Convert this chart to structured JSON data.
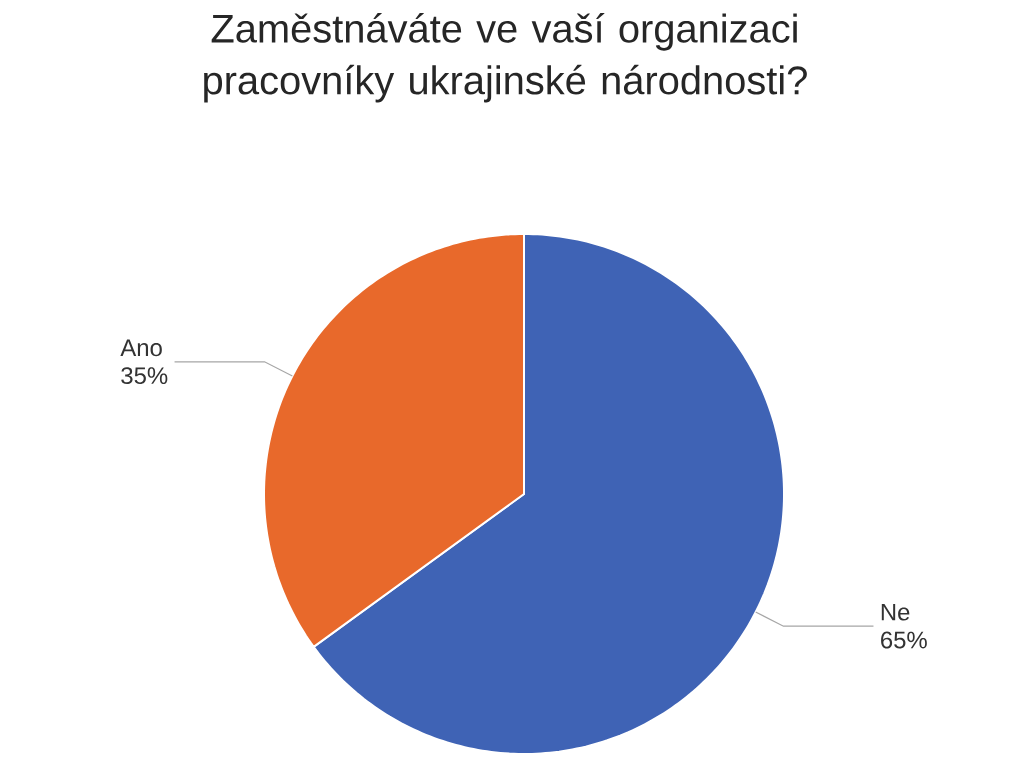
{
  "chart_data": {
    "type": "pie",
    "title": "Zaměstnáváte ve vaší organizaci pracovníky ukrajinské národnosti?",
    "categories": [
      "Ne",
      "Ano"
    ],
    "values": [
      65,
      35
    ],
    "value_labels": [
      "65%",
      "35%"
    ],
    "colors": [
      "#3f63b5",
      "#e8692b"
    ]
  }
}
